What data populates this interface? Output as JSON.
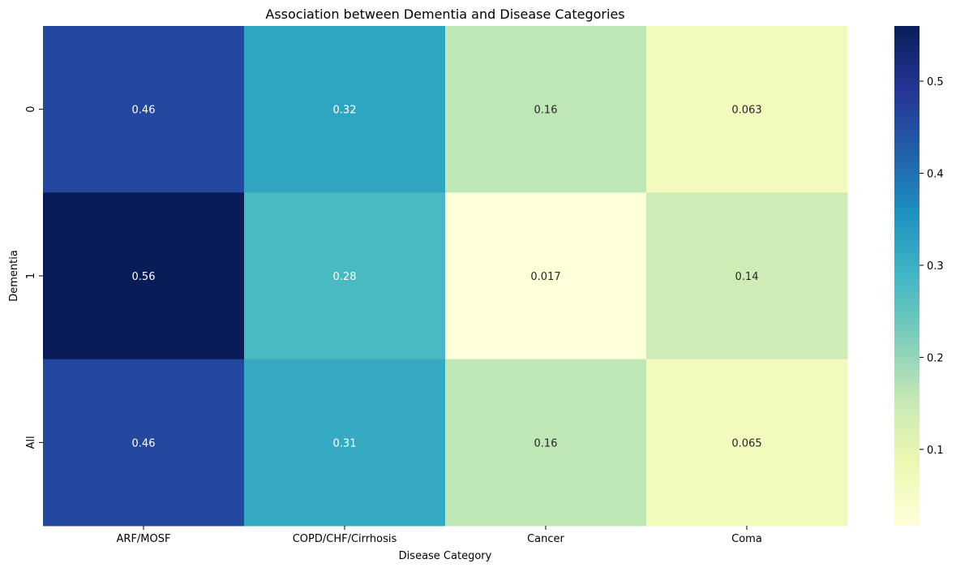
{
  "chart_data": {
    "type": "heatmap",
    "title": "Association between Dementia and Disease Categories",
    "xlabel": "Disease Category",
    "ylabel": "Dementia",
    "x_categories": [
      "ARF/MOSF",
      "COPD/CHF/Cirrhosis",
      "Cancer",
      "Coma"
    ],
    "y_categories": [
      "0",
      "1",
      "All"
    ],
    "values": [
      [
        0.46,
        0.32,
        0.16,
        0.063
      ],
      [
        0.56,
        0.28,
        0.017,
        0.14
      ],
      [
        0.46,
        0.31,
        0.16,
        0.065
      ]
    ],
    "value_labels": [
      [
        "0.46",
        "0.32",
        "0.16",
        "0.063"
      ],
      [
        "0.56",
        "0.28",
        "0.017",
        "0.14"
      ],
      [
        "0.46",
        "0.31",
        "0.16",
        "0.065"
      ]
    ],
    "colormap": "YlGnBu",
    "colorbar": {
      "vmin": 0.017,
      "vmax": 0.56,
      "ticks": [
        0.1,
        0.2,
        0.3,
        0.4,
        0.5
      ],
      "tick_labels": [
        "0.1",
        "0.2",
        "0.3",
        "0.4",
        "0.5"
      ]
    },
    "colormap_stops": [
      "#ffffd9",
      "#edf8b1",
      "#c7e9b4",
      "#7fcdbb",
      "#41b6c4",
      "#1d91c0",
      "#225ea8",
      "#253494",
      "#081d58"
    ],
    "annotation_light_text_color": "#ffffff",
    "annotation_dark_text_color": "#262626"
  }
}
